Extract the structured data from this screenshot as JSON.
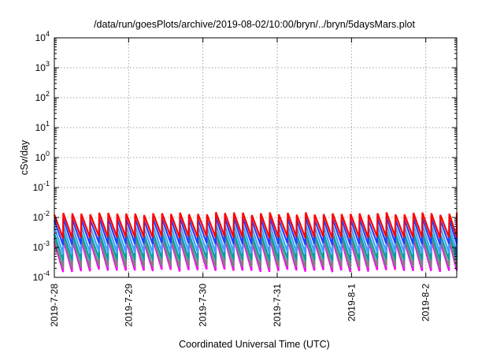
{
  "chart_data": {
    "type": "line",
    "title": "/data/run/goesPlots/archive/2019-08-02/10:00/bryn/../bryn/5daysMars.plot",
    "xlabel": "Coordinated Universal Time (UTC)",
    "ylabel": "cSv/day",
    "yscale": "log",
    "ylim": [
      0.0001,
      10000
    ],
    "xlim": [
      "2019-07-28T00:00",
      "2019-08-02T10:00"
    ],
    "x_ticks": [
      "2019-7-28",
      "2019-7-29",
      "2019-7-30",
      "2019-7-31",
      "2019-8-1",
      "2019-8-2"
    ],
    "y_ticks": [
      {
        "value": 0.0001,
        "base": "10",
        "exp": "-4"
      },
      {
        "value": 0.001,
        "base": "10",
        "exp": "-3"
      },
      {
        "value": 0.01,
        "base": "10",
        "exp": "-2"
      },
      {
        "value": 0.1,
        "base": "10",
        "exp": "-1"
      },
      {
        "value": 1,
        "base": "10",
        "exp": "0"
      },
      {
        "value": 10,
        "base": "10",
        "exp": "1"
      },
      {
        "value": 100,
        "base": "10",
        "exp": "2"
      },
      {
        "value": 1000,
        "base": "10",
        "exp": "3"
      },
      {
        "value": 10000,
        "base": "10",
        "exp": "4"
      }
    ],
    "grid": true,
    "sawtooth_period_hours": 2.9,
    "series": [
      {
        "color": "#ff00ff",
        "peak": 0.002,
        "trough": 0.00015
      },
      {
        "color": "#808080",
        "peak": 0.0025,
        "trough": 0.0002
      },
      {
        "color": "#00a0a0",
        "peak": 0.0035,
        "trough": 0.00035
      },
      {
        "color": "#40a0ff",
        "peak": 0.006,
        "trough": 0.0006
      },
      {
        "color": "#2040ff",
        "peak": 0.01,
        "trough": 0.0012
      },
      {
        "color": "#ff0000",
        "peak": 0.015,
        "trough": 0.002
      }
    ]
  }
}
